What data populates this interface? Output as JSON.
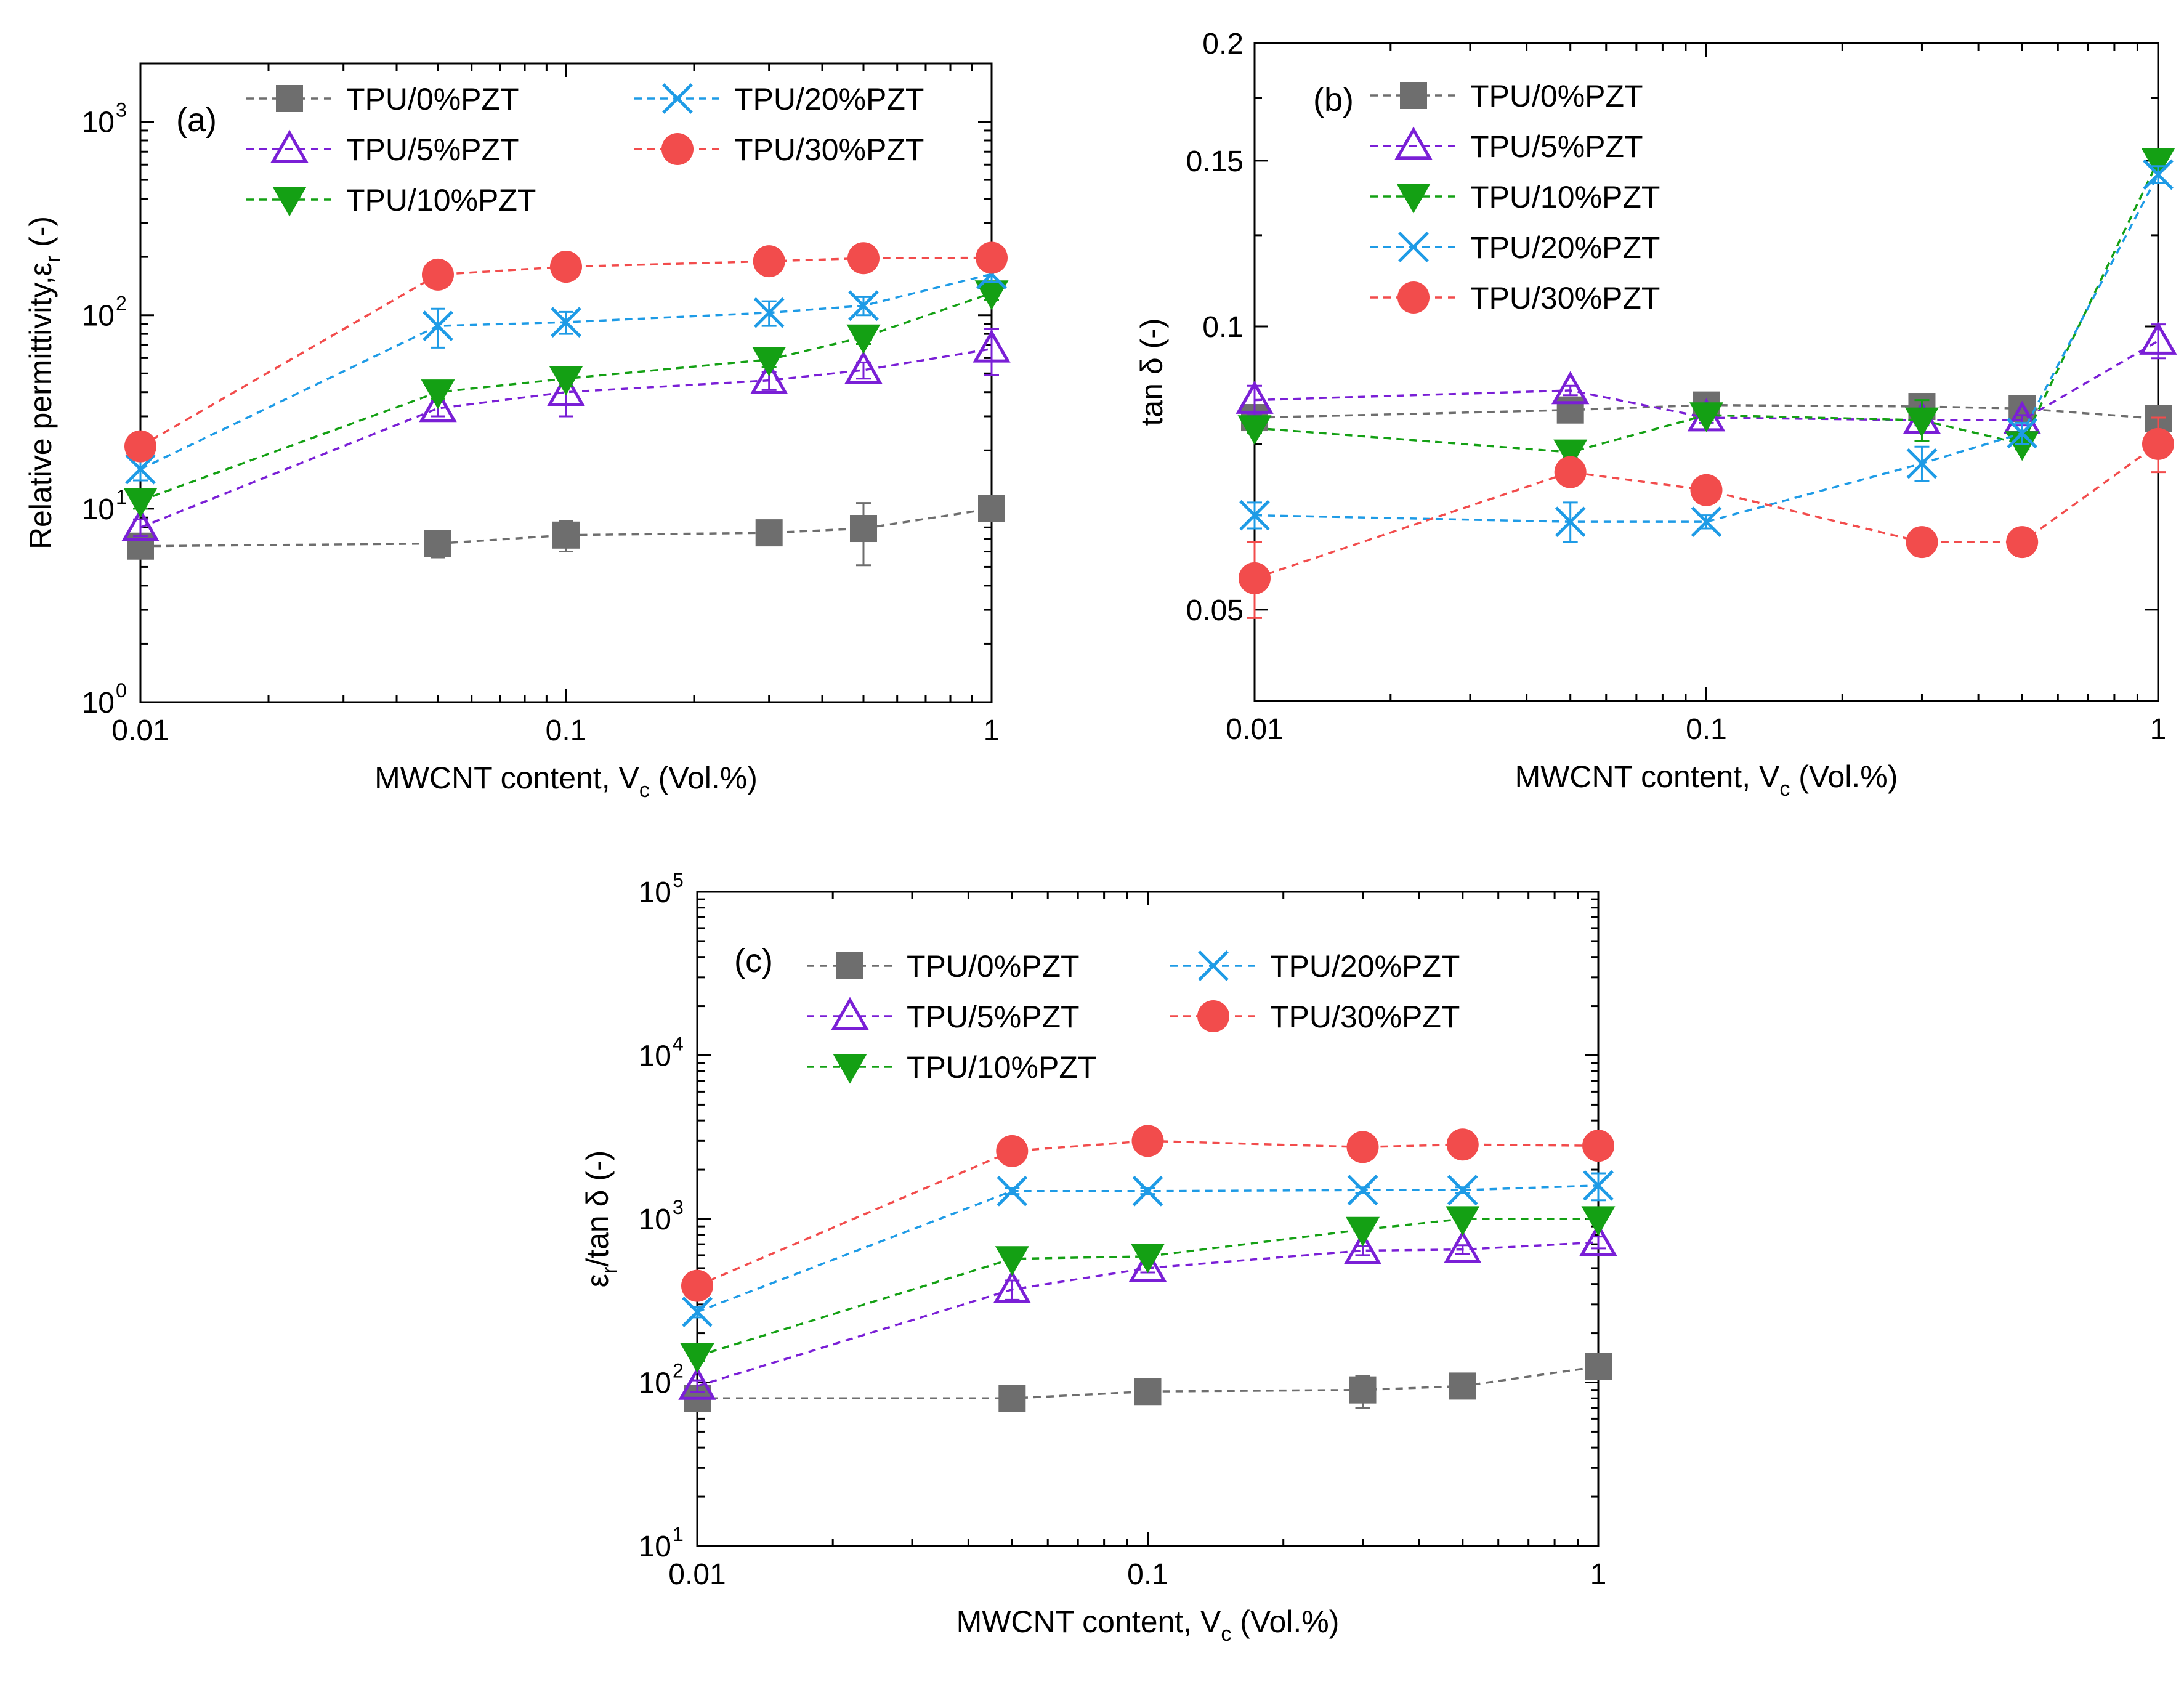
{
  "figure": {
    "x_values_note": "MWCNT content (Vol.%)"
  },
  "series_styles": [
    {
      "name": "TPU/0%PZT",
      "color": "#6e6e6e",
      "marker": "square"
    },
    {
      "name": "TPU/5%PZT",
      "color": "#7a1fd6",
      "marker": "triangle-up-open"
    },
    {
      "name": "TPU/10%PZT",
      "color": "#14a014",
      "marker": "triangle-down"
    },
    {
      "name": "TPU/20%PZT",
      "color": "#1e9be6",
      "marker": "x"
    },
    {
      "name": "TPU/30%PZT",
      "color": "#f24c4c",
      "marker": "circle"
    }
  ],
  "chart_data": [
    {
      "id": "a",
      "type": "line",
      "panel_label": "(a)",
      "xlabel_main": "MWCNT content, V",
      "xlabel_sub": "c",
      "xlabel_end": " (Vol.%)",
      "ylabel": "Relative permittivity,",
      "ylabel_sym": "ε",
      "ylabel_sub": "r",
      "ylabel_end": " (-)",
      "xscale": "log",
      "yscale": "log",
      "xlim": [
        0.01,
        1
      ],
      "ylim": [
        1,
        2000
      ],
      "x_ticks": [
        {
          "v": 0.01,
          "label": "0.01"
        },
        {
          "v": 0.1,
          "label": "0.1"
        },
        {
          "v": 1,
          "label": "1"
        }
      ],
      "y_ticks": [
        {
          "v": 1,
          "base": "10",
          "exp": "0"
        },
        {
          "v": 10,
          "base": "10",
          "exp": "1"
        },
        {
          "v": 100,
          "base": "10",
          "exp": "2"
        },
        {
          "v": 1000,
          "base": "10",
          "exp": "3"
        }
      ],
      "legend_layout": "two-column",
      "x": [
        0.01,
        0.05,
        0.1,
        0.3,
        0.5,
        1
      ],
      "series": [
        {
          "name": "TPU/0%PZT",
          "values": [
            6.4,
            6.6,
            7.3,
            7.5,
            7.9,
            10
          ],
          "errors": [
            0.5,
            1.0,
            1.3,
            0.6,
            2.8,
            1.0
          ]
        },
        {
          "name": "TPU/5%PZT",
          "values": [
            8.0,
            33,
            40,
            46,
            52,
            67
          ],
          "errors": [
            0.8,
            3,
            10,
            5,
            5,
            18
          ]
        },
        {
          "name": "TPU/10%PZT",
          "values": [
            11,
            40,
            47,
            59,
            77,
            130
          ],
          "errors": [
            1,
            3,
            4,
            5,
            6,
            10
          ]
        },
        {
          "name": "TPU/20%PZT",
          "values": [
            16,
            88,
            92,
            103,
            112,
            163
          ],
          "errors": [
            2,
            20,
            12,
            15,
            12,
            15
          ]
        },
        {
          "name": "TPU/30%PZT",
          "values": [
            21,
            162,
            178,
            190,
            197,
            198
          ],
          "errors": [
            2,
            10,
            10,
            10,
            10,
            10
          ]
        }
      ]
    },
    {
      "id": "b",
      "type": "line",
      "panel_label": "(b)",
      "xlabel_main": "MWCNT content, V",
      "xlabel_sub": "c",
      "xlabel_end": " (Vol.%)",
      "ylabel": "tan δ (-)",
      "xscale": "log",
      "yscale": "log",
      "xlim": [
        0.01,
        1
      ],
      "ylim": [
        0.04,
        0.2
      ],
      "x_ticks": [
        {
          "v": 0.01,
          "label": "0.01"
        },
        {
          "v": 0.1,
          "label": "0.1"
        },
        {
          "v": 1,
          "label": "1"
        }
      ],
      "y_ticks": [
        {
          "v": 0.05,
          "label": "0.05"
        },
        {
          "v": 0.1,
          "label": "0.1"
        },
        {
          "v": 0.15,
          "label": "0.15"
        },
        {
          "v": 0.2,
          "label": "0.2"
        }
      ],
      "legend_layout": "one-column",
      "x": [
        0.01,
        0.05,
        0.1,
        0.3,
        0.5,
        1
      ],
      "series": [
        {
          "name": "TPU/0%PZT",
          "values": [
            0.08,
            0.0815,
            0.0825,
            0.0822,
            0.0818,
            0.0798
          ],
          "errors": [
            0.002,
            0.001,
            0.001,
            0.001,
            0.001,
            0.001
          ]
        },
        {
          "name": "TPU/5%PZT",
          "values": [
            0.0835,
            0.0855,
            0.08,
            0.0795,
            0.0795,
            0.0965
          ],
          "errors": [
            0.003,
            0.001,
            0.001,
            0.001,
            0.001,
            0.004
          ]
        },
        {
          "name": "TPU/10%PZT",
          "values": [
            0.078,
            0.0735,
            0.0805,
            0.0795,
            0.075,
            0.15
          ],
          "errors": [
            0.001,
            0.001,
            0.001,
            0.004,
            0.001,
            0.003
          ]
        },
        {
          "name": "TPU/20%PZT",
          "values": [
            0.063,
            0.062,
            0.062,
            0.0715,
            0.077,
            0.145
          ],
          "errors": [
            0.002,
            0.003,
            0.001,
            0.003,
            0.002,
            0.003
          ]
        },
        {
          "name": "TPU/30%PZT",
          "values": [
            0.054,
            0.07,
            0.067,
            0.059,
            0.059,
            0.075
          ],
          "errors": [
            0.005,
            0.001,
            0.002,
            0.002,
            0.002,
            0.005
          ]
        }
      ]
    },
    {
      "id": "c",
      "type": "line",
      "panel_label": "(c)",
      "xlabel_main": "MWCNT content, V",
      "xlabel_sub": "c",
      "xlabel_end": " (Vol.%)",
      "ylabel": "",
      "ylabel_sym": "ε",
      "ylabel_sub": "r",
      "ylabel_end": "/tan δ (-)",
      "xscale": "log",
      "yscale": "log",
      "xlim": [
        0.01,
        1
      ],
      "ylim": [
        10,
        100000
      ],
      "x_ticks": [
        {
          "v": 0.01,
          "label": "0.01"
        },
        {
          "v": 0.1,
          "label": "0.1"
        },
        {
          "v": 1,
          "label": "1"
        }
      ],
      "y_ticks": [
        {
          "v": 10,
          "base": "10",
          "exp": "1"
        },
        {
          "v": 100,
          "base": "10",
          "exp": "2"
        },
        {
          "v": 1000,
          "base": "10",
          "exp": "3"
        },
        {
          "v": 10000,
          "base": "10",
          "exp": "4"
        },
        {
          "v": 100000,
          "base": "10",
          "exp": "5"
        }
      ],
      "legend_layout": "two-column",
      "x": [
        0.01,
        0.05,
        0.1,
        0.3,
        0.5,
        1
      ],
      "series": [
        {
          "name": "TPU/0%PZT",
          "values": [
            80,
            80,
            88,
            90,
            95,
            125
          ],
          "errors": [
            6,
            8,
            12,
            20,
            6,
            10
          ]
        },
        {
          "name": "TPU/5%PZT",
          "values": [
            95,
            370,
            500,
            640,
            650,
            720
          ],
          "errors": [
            8,
            50,
            30,
            40,
            40,
            60
          ]
        },
        {
          "name": "TPU/10%PZT",
          "values": [
            145,
            570,
            590,
            860,
            1000,
            1000
          ],
          "errors": [
            10,
            30,
            30,
            40,
            40,
            40
          ]
        },
        {
          "name": "TPU/20%PZT",
          "values": [
            270,
            1480,
            1480,
            1500,
            1500,
            1600
          ],
          "errors": [
            20,
            60,
            60,
            60,
            60,
            300
          ]
        },
        {
          "name": "TPU/30%PZT",
          "values": [
            390,
            2600,
            3000,
            2750,
            2850,
            2800
          ],
          "errors": [
            20,
            80,
            80,
            80,
            80,
            80
          ]
        }
      ]
    }
  ]
}
